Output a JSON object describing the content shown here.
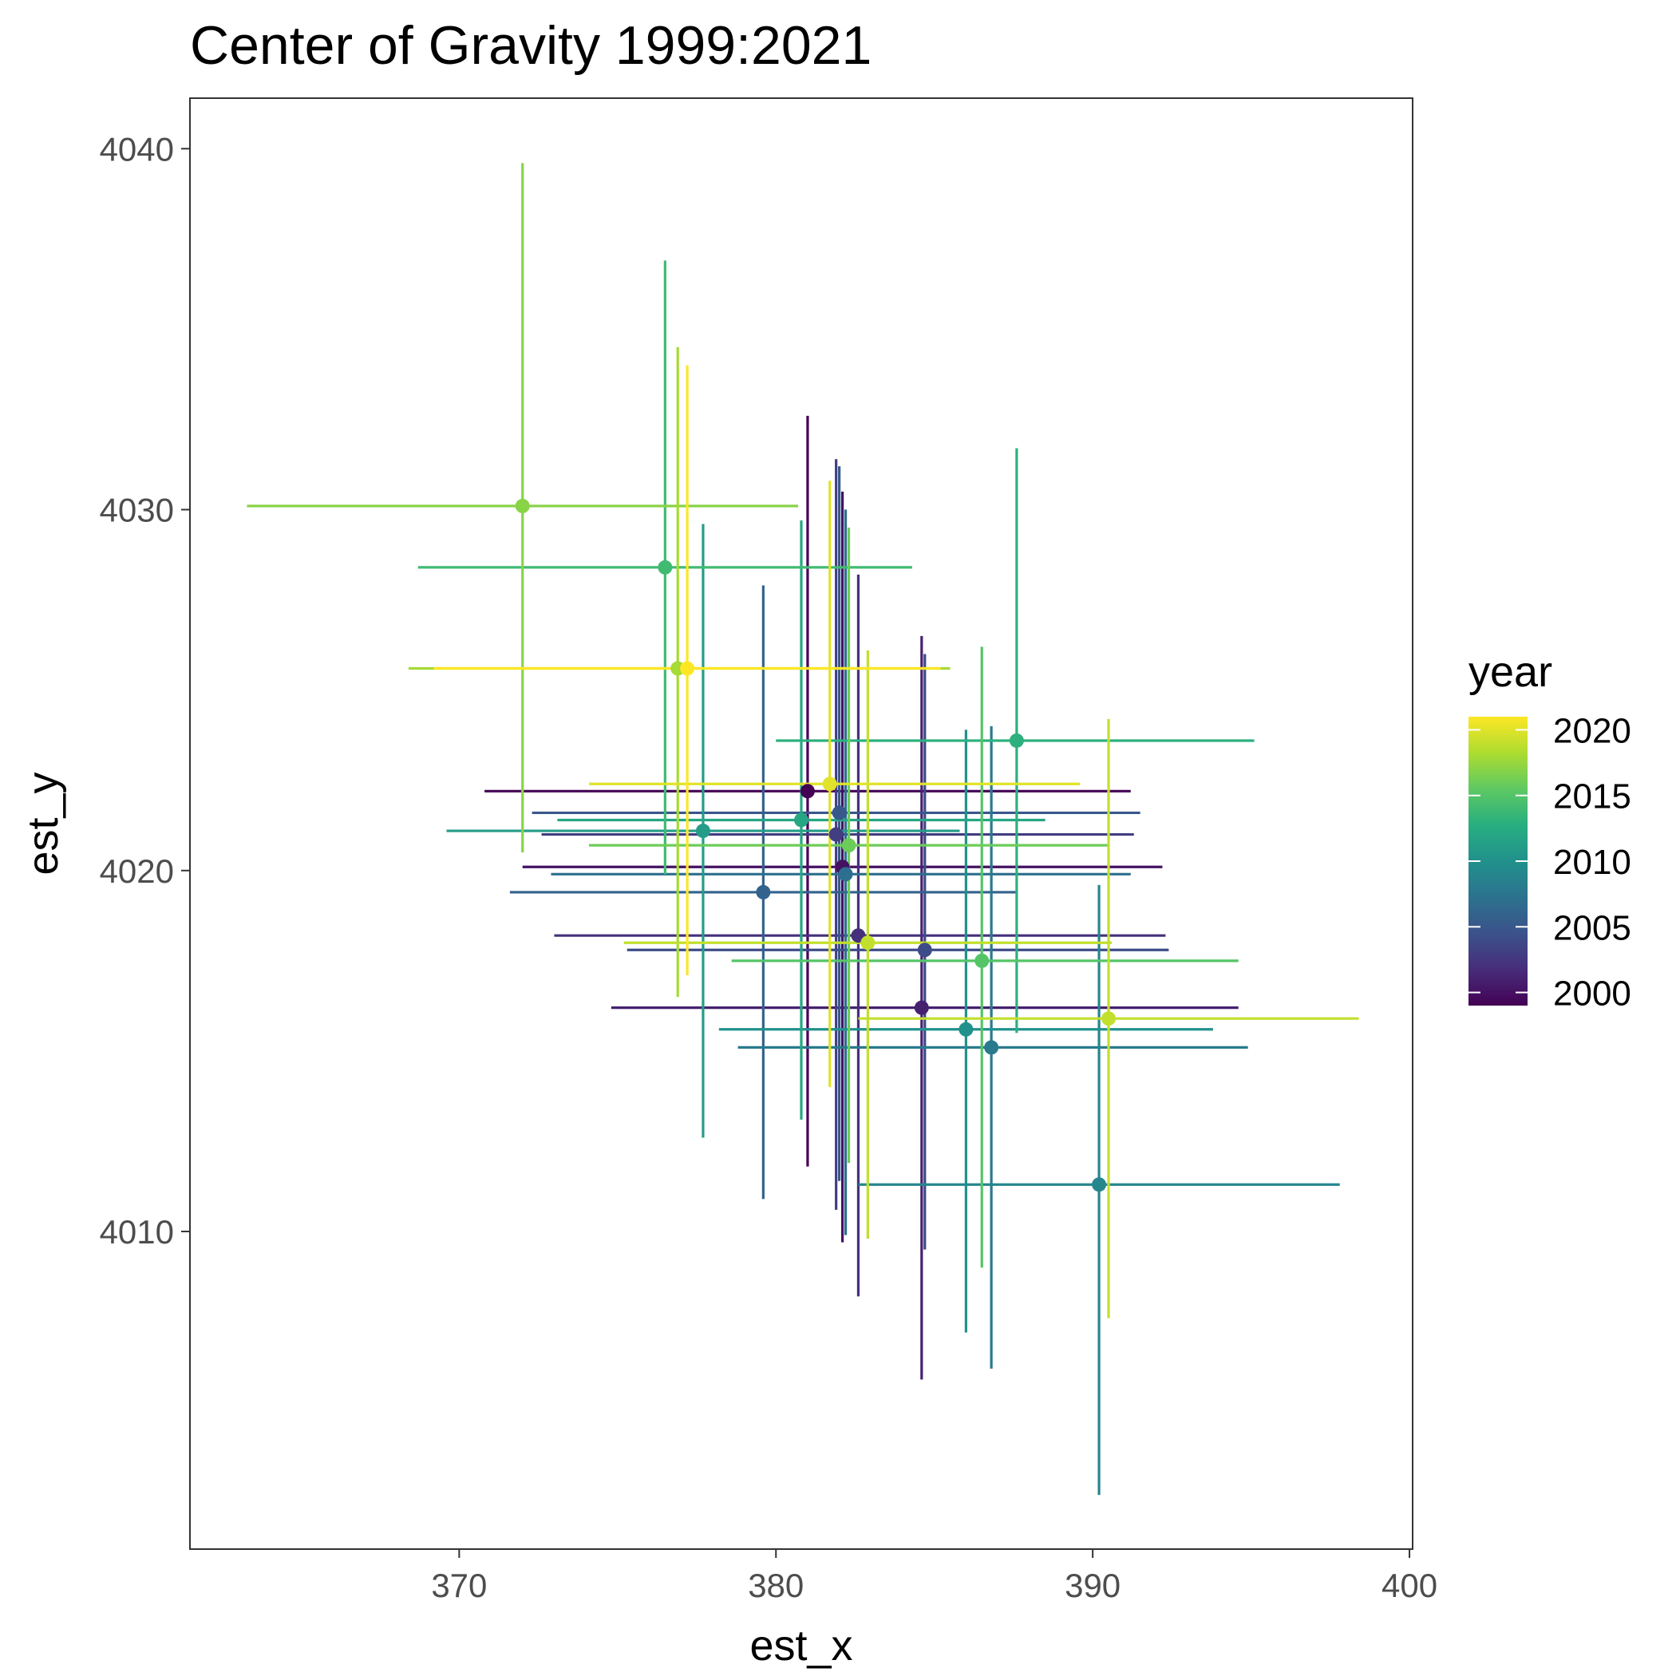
{
  "chart_data": {
    "type": "scatter",
    "title": "Center of Gravity 1999:2021",
    "xlabel": "est_x",
    "ylabel": "est_y",
    "xlim": [
      361.5,
      400.1
    ],
    "ylim": [
      4001.2,
      4041.4
    ],
    "x_ticks": [
      "370",
      "380",
      "390",
      "400"
    ],
    "y_ticks": [
      "4010",
      "4020",
      "4030",
      "4040"
    ],
    "grid": false,
    "error_bars": true,
    "color_by": "year",
    "color_scale": "viridis",
    "color_range": [
      1999,
      2021
    ],
    "legend": {
      "title": "year",
      "position": "right",
      "ticks": [
        "2000",
        "2005",
        "2010",
        "2015",
        "2020"
      ]
    },
    "points": [
      {
        "year": 1999,
        "x": 381.0,
        "y": 4022.2,
        "xerr": [
          370.8,
          391.2
        ],
        "yerr": [
          4011.8,
          4032.6
        ]
      },
      {
        "year": 2000,
        "x": 382.1,
        "y": 4020.1,
        "xerr": [
          372.0,
          392.2
        ],
        "yerr": [
          4009.7,
          4030.5
        ]
      },
      {
        "year": 2001,
        "x": 384.6,
        "y": 4016.2,
        "xerr": [
          374.8,
          394.6
        ],
        "yerr": [
          4005.9,
          4026.5
        ]
      },
      {
        "year": 2002,
        "x": 382.6,
        "y": 4018.2,
        "xerr": [
          373.0,
          392.3
        ],
        "yerr": [
          4008.2,
          4028.2
        ]
      },
      {
        "year": 2003,
        "x": 381.9,
        "y": 4021.0,
        "xerr": [
          372.6,
          391.3
        ],
        "yerr": [
          4010.6,
          4031.4
        ]
      },
      {
        "year": 2004,
        "x": 384.7,
        "y": 4017.8,
        "xerr": [
          375.3,
          392.4
        ],
        "yerr": [
          4009.5,
          4026.0
        ]
      },
      {
        "year": 2005,
        "x": 382.0,
        "y": 4021.6,
        "xerr": [
          372.3,
          391.5
        ],
        "yerr": [
          4011.4,
          4031.2
        ]
      },
      {
        "year": 2006,
        "x": 379.6,
        "y": 4019.4,
        "xerr": [
          371.6,
          387.6
        ],
        "yerr": [
          4010.9,
          4027.9
        ]
      },
      {
        "year": 2007,
        "x": 382.2,
        "y": 4019.9,
        "xerr": [
          372.9,
          391.2
        ],
        "yerr": [
          4009.9,
          4030.0
        ]
      },
      {
        "year": 2008,
        "x": 386.8,
        "y": 4015.1,
        "xerr": [
          378.8,
          394.9
        ],
        "yerr": [
          4006.2,
          4024.0
        ]
      },
      {
        "year": 2009,
        "x": 390.2,
        "y": 4011.3,
        "xerr": [
          382.6,
          397.8
        ],
        "yerr": [
          4002.7,
          4019.6
        ]
      },
      {
        "year": 2010,
        "x": 386.0,
        "y": 4015.6,
        "xerr": [
          378.2,
          393.8
        ],
        "yerr": [
          4007.2,
          4023.9
        ]
      },
      {
        "year": 2011,
        "x": 377.7,
        "y": 4021.1,
        "xerr": [
          369.6,
          385.8
        ],
        "yerr": [
          4012.6,
          4029.6
        ]
      },
      {
        "year": 2012,
        "x": 380.8,
        "y": 4021.4,
        "xerr": [
          373.1,
          388.5
        ],
        "yerr": [
          4013.1,
          4029.7
        ]
      },
      {
        "year": 2013,
        "x": 387.6,
        "y": 4023.6,
        "xerr": [
          380.0,
          395.1
        ],
        "yerr": [
          4015.5,
          4031.7
        ]
      },
      {
        "year": 2014,
        "x": 376.5,
        "y": 4028.4,
        "xerr": [
          368.7,
          384.3
        ],
        "yerr": [
          4019.9,
          4036.9
        ]
      },
      {
        "year": 2015,
        "x": 386.5,
        "y": 4017.5,
        "xerr": [
          378.6,
          394.6
        ],
        "yerr": [
          4009.0,
          4026.2
        ]
      },
      {
        "year": 2016,
        "x": 382.3,
        "y": 4020.7,
        "xerr": [
          374.1,
          390.5
        ],
        "yerr": [
          4011.9,
          4029.5
        ]
      },
      {
        "year": 2017,
        "x": 372.0,
        "y": 4030.1,
        "xerr": [
          363.3,
          380.7
        ],
        "yerr": [
          4020.5,
          4039.6
        ]
      },
      {
        "year": 2018,
        "x": 376.9,
        "y": 4025.6,
        "xerr": [
          368.4,
          385.5
        ],
        "yerr": [
          4016.5,
          4034.5
        ]
      },
      {
        "year": 2019,
        "x": 382.9,
        "y": 4018.0,
        "xerr": [
          375.2,
          390.6
        ],
        "yerr": [
          4009.8,
          4026.1
        ]
      },
      {
        "year": 2019,
        "x": 390.5,
        "y": 4015.9,
        "xerr": [
          382.6,
          398.4
        ],
        "yerr": [
          4007.6,
          4024.2
        ]
      },
      {
        "year": 2020,
        "x": 381.7,
        "y": 4022.4,
        "xerr": [
          374.1,
          389.6
        ],
        "yerr": [
          4014.0,
          4030.8
        ]
      },
      {
        "year": 2021,
        "x": 377.2,
        "y": 4025.6,
        "xerr": [
          369.2,
          385.2
        ],
        "yerr": [
          4017.1,
          4034.0
        ]
      }
    ]
  }
}
